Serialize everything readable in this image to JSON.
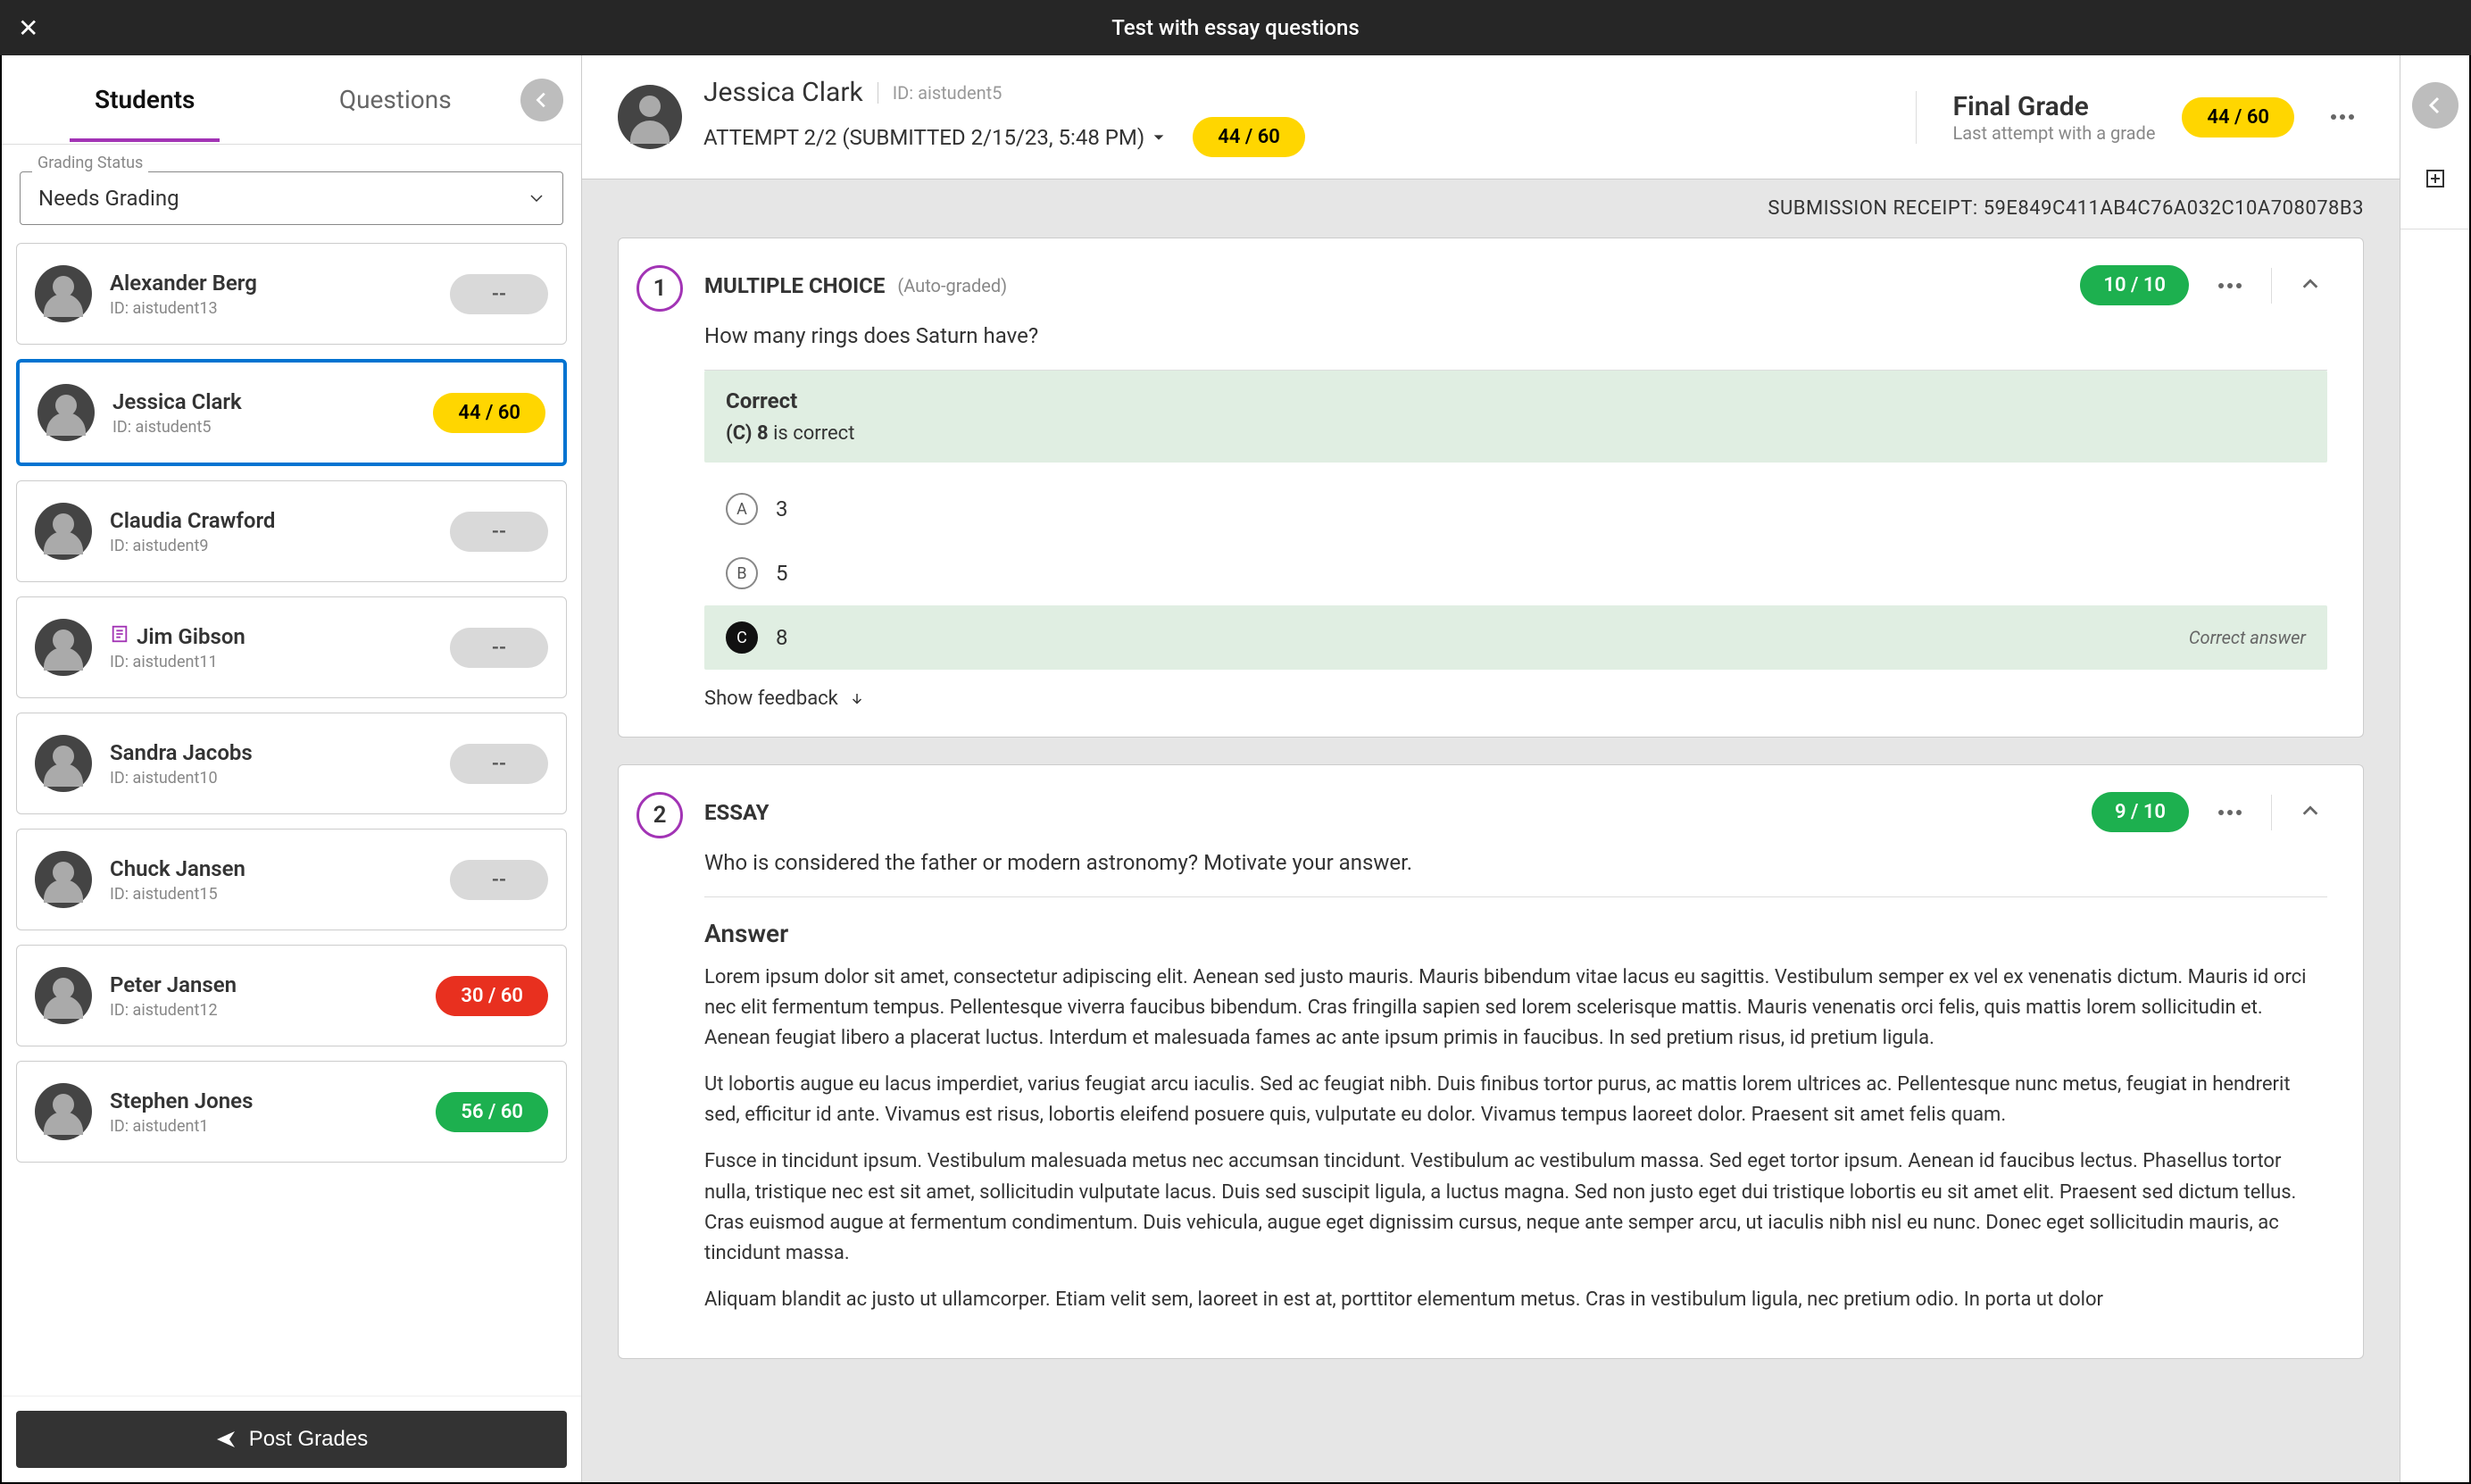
{
  "colors": {
    "accent_purple": "#a234b5",
    "pill_yellow": "#ffd600",
    "pill_red": "#e8301f",
    "pill_green": "#1db04f",
    "selected_blue": "#0073d1"
  },
  "topbar": {
    "title": "Test with essay questions"
  },
  "left": {
    "tabs": {
      "students": "Students",
      "questions": "Questions"
    },
    "filter": {
      "label": "Grading Status",
      "value": "Needs Grading"
    },
    "students": [
      {
        "name": "Alexander Berg",
        "id": "ID: aistudent13",
        "grade": "--",
        "pill": "none",
        "selected": false,
        "accommodation": false
      },
      {
        "name": "Jessica Clark",
        "id": "ID: aistudent5",
        "grade": "44 / 60",
        "pill": "yellow",
        "selected": true,
        "accommodation": false
      },
      {
        "name": "Claudia Crawford",
        "id": "ID: aistudent9",
        "grade": "--",
        "pill": "none",
        "selected": false,
        "accommodation": false
      },
      {
        "name": "Jim Gibson",
        "id": "ID: aistudent11",
        "grade": "--",
        "pill": "none",
        "selected": false,
        "accommodation": true
      },
      {
        "name": "Sandra Jacobs",
        "id": "ID: aistudent10",
        "grade": "--",
        "pill": "none",
        "selected": false,
        "accommodation": false
      },
      {
        "name": "Chuck Jansen",
        "id": "ID: aistudent15",
        "grade": "--",
        "pill": "none",
        "selected": false,
        "accommodation": false
      },
      {
        "name": "Peter Jansen",
        "id": "ID: aistudent12",
        "grade": "30 / 60",
        "pill": "red",
        "selected": false,
        "accommodation": false
      },
      {
        "name": "Stephen Jones",
        "id": "ID: aistudent1",
        "grade": "56 / 60",
        "pill": "green",
        "selected": false,
        "accommodation": false
      }
    ],
    "post_grades": "Post Grades"
  },
  "header": {
    "name": "Jessica Clark",
    "student_id": "ID: aistudent5",
    "attempt": "ATTEMPT 2/2 (SUBMITTED 2/15/23, 5:48 PM)",
    "attempt_grade": "44 / 60",
    "final_grade_label": "Final Grade",
    "final_grade_sub": "Last attempt with a grade",
    "final_grade": "44 / 60"
  },
  "receipt": {
    "label": "SUBMISSION RECEIPT: ",
    "value": "59E849C411AB4C76A032C10A708078B3"
  },
  "questions": [
    {
      "num": "1",
      "type": "MULTIPLE CHOICE",
      "auto": "(Auto-graded)",
      "score": "10 / 10",
      "text": "How many rings does Saturn have?",
      "correct_title": "Correct",
      "correct_sub_bold": "(C) 8",
      "correct_sub_rest": " is correct",
      "choices": [
        {
          "letter": "A",
          "text": "3",
          "correct": false
        },
        {
          "letter": "B",
          "text": "5",
          "correct": false
        },
        {
          "letter": "C",
          "text": "8",
          "correct": true,
          "label": "Correct answer"
        }
      ],
      "show_feedback": "Show feedback"
    },
    {
      "num": "2",
      "type": "ESSAY",
      "score": "9 / 10",
      "text": "Who is considered the father or modern astronomy? Motivate your answer.",
      "answer_title": "Answer",
      "answer_paras": [
        "Lorem ipsum dolor sit amet, consectetur adipiscing elit. Aenean sed justo mauris. Mauris bibendum vitae lacus eu sagittis. Vestibulum semper ex vel ex venenatis dictum. Mauris id orci nec elit fermentum tempus. Pellentesque viverra faucibus bibendum. Cras fringilla sapien sed lorem scelerisque mattis. Mauris venenatis orci felis, quis mattis lorem sollicitudin et. Aenean feugiat libero a placerat luctus. Interdum et malesuada fames ac ante ipsum primis in faucibus. In sed pretium risus, id pretium ligula.",
        "Ut lobortis augue eu lacus imperdiet, varius feugiat arcu iaculis. Sed ac feugiat nibh. Duis finibus tortor purus, ac mattis lorem ultrices ac. Pellentesque nunc metus, feugiat in hendrerit sed, efficitur id ante. Vivamus est risus, lobortis eleifend posuere quis, vulputate eu dolor. Vivamus tempus laoreet dolor. Praesent sit amet felis quam.",
        "Fusce in tincidunt ipsum. Vestibulum malesuada metus nec accumsan tincidunt. Vestibulum ac vestibulum massa. Sed eget tortor ipsum. Aenean id faucibus lectus. Phasellus tortor nulla, tristique nec est sit amet, sollicitudin vulputate lacus. Duis sed suscipit ligula, a luctus magna. Sed non justo eget dui tristique lobortis eu sit amet elit. Praesent sed dictum tellus. Cras euismod augue at fermentum condimentum. Duis vehicula, augue eget dignissim cursus, neque ante semper arcu, ut iaculis nibh nisl eu nunc. Donec eget sollicitudin mauris, ac tincidunt massa.",
        "Aliquam blandit ac justo ut ullamcorper. Etiam velit sem, laoreet in est at, porttitor elementum metus. Cras in vestibulum ligula, nec pretium odio. In porta ut dolor"
      ]
    }
  ]
}
